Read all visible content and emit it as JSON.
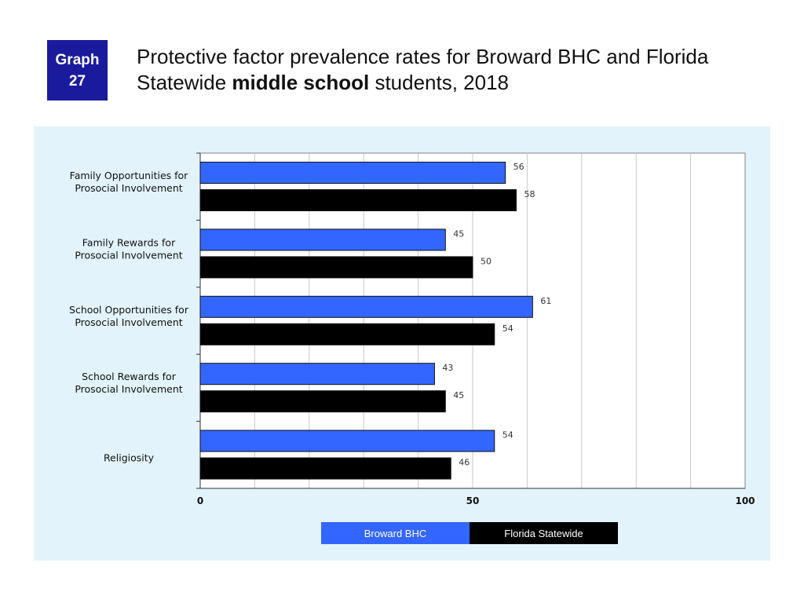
{
  "badge": {
    "line1": "Graph",
    "line2": "27"
  },
  "title": {
    "part1": "Protective factor prevalence rates for Broward BHC and Florida Statewide ",
    "bold": "middle school",
    "part2": " students, 2018"
  },
  "colors": {
    "broward": "#3366ff",
    "florida": "#000000",
    "panel": "#e2f3fb",
    "badge": "#1a1a9c"
  },
  "chart_data": {
    "type": "bar",
    "orientation": "horizontal",
    "categories": [
      [
        "Family Opportunities for",
        "Prosocial Involvement"
      ],
      [
        "Family Rewards for",
        "Prosocial Involvement"
      ],
      [
        "School Opportunities for",
        "Prosocial Involvement"
      ],
      [
        "School Rewards for",
        "Prosocial Involvement"
      ],
      [
        "Religiosity"
      ]
    ],
    "series": [
      {
        "name": "Broward BHC",
        "values": [
          56,
          45,
          61,
          43,
          54
        ]
      },
      {
        "name": "Florida Statewide",
        "values": [
          58,
          50,
          54,
          45,
          46
        ]
      }
    ],
    "xlim": [
      0,
      100
    ],
    "xticks": [
      0,
      50,
      100
    ],
    "grid_step": 10,
    "grid": true,
    "legend_position": "bottom-center"
  }
}
